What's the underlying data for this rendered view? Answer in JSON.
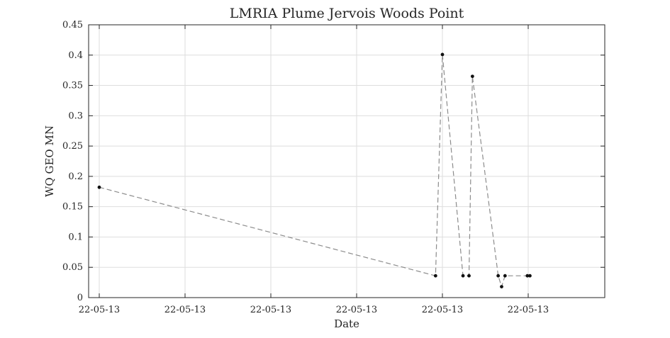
{
  "chart_data": {
    "type": "line",
    "title": "LMRIA Plume Jervois Woods Point",
    "xlabel": "Date",
    "ylabel": "WQ GEO MN",
    "xlim": [
      0,
      6
    ],
    "ylim": [
      0,
      0.45
    ],
    "grid": true,
    "x_ticks": [
      0,
      1,
      2,
      3,
      4,
      5
    ],
    "x_tick_labels": [
      "22-05-13",
      "22-05-13",
      "22-05-13",
      "22-05-13",
      "22-05-13",
      "22-05-13"
    ],
    "y_ticks": [
      0,
      0.05,
      0.1,
      0.15,
      0.2,
      0.25,
      0.3,
      0.35,
      0.4,
      0.45
    ],
    "y_tick_labels": [
      "0",
      "0.05",
      "0.1",
      "0.15",
      "0.2",
      "0.25",
      "0.3",
      "0.35",
      "0.4",
      "0.45"
    ],
    "series": [
      {
        "line_style": "dashed",
        "line_color": "#8c8c8c",
        "marker": "dot",
        "marker_color": "#111111",
        "x": [
          0.0,
          3.92,
          4.0,
          4.24,
          4.31,
          4.35,
          4.65,
          4.69,
          4.73,
          4.99,
          5.02
        ],
        "y": [
          0.182,
          0.036,
          0.401,
          0.036,
          0.036,
          0.365,
          0.036,
          0.018,
          0.036,
          0.036,
          0.036
        ]
      }
    ]
  }
}
